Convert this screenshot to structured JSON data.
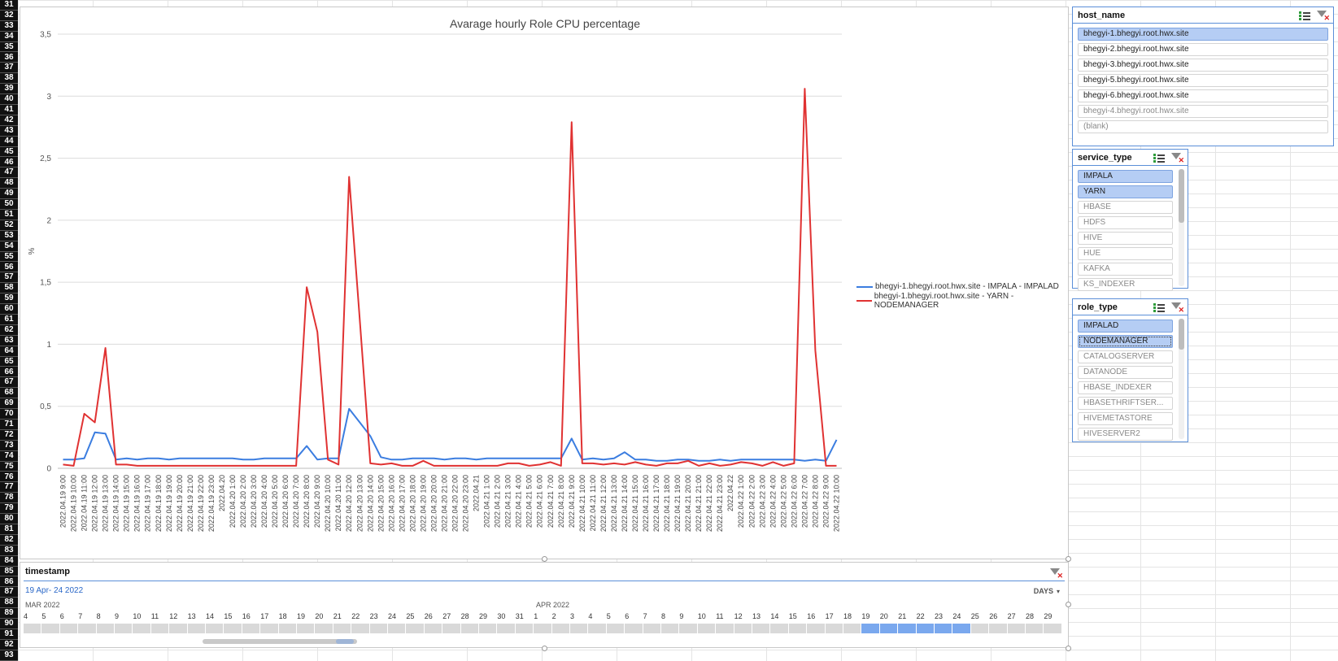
{
  "row_numbers": [
    "31",
    "32",
    "33",
    "34",
    "35",
    "36",
    "37",
    "38",
    "39",
    "40",
    "41",
    "42",
    "43",
    "44",
    "45",
    "46",
    "47",
    "48",
    "49",
    "50",
    "51",
    "52",
    "53",
    "54",
    "55",
    "56",
    "57",
    "58",
    "59",
    "60",
    "61",
    "62",
    "63",
    "64",
    "65",
    "66",
    "67",
    "68",
    "69",
    "70",
    "71",
    "72",
    "73",
    "74",
    "75",
    "76",
    "77",
    "78",
    "79",
    "80",
    "81",
    "82",
    "83",
    "84",
    "85",
    "86",
    "87",
    "88",
    "89",
    "90",
    "91",
    "92",
    "93"
  ],
  "chart_data": {
    "type": "line",
    "title": "Avarage hourly Role CPU percentage",
    "ylabel": "%",
    "xlabel": "",
    "ylim": [
      0,
      3.5
    ],
    "yticks": [
      "0",
      "0,5",
      "1",
      "1,5",
      "2",
      "2,5",
      "3",
      "3,5"
    ],
    "grid": true,
    "legend_position": "right",
    "x": [
      "2022.04.19 9:00",
      "2022.04.19 10:00",
      "2022.04.19 11:00",
      "2022.04.19 12:00",
      "2022.04.19 13:00",
      "2022.04.19 14:00",
      "2022.04.19 15:00",
      "2022.04.19 16:00",
      "2022.04.19 17:00",
      "2022.04.19 18:00",
      "2022.04.19 19:00",
      "2022.04.19 20:00",
      "2022.04.19 21:00",
      "2022.04.19 22:00",
      "2022.04.19 23:00",
      "2022.04.20",
      "2022.04.20 1:00",
      "2022.04.20 2:00",
      "2022.04.20 3:00",
      "2022.04.20 4:00",
      "2022.04.20 5:00",
      "2022.04.20 6:00",
      "2022.04.20 7:00",
      "2022.04.20 8:00",
      "2022.04.20 9:00",
      "2022.04.20 10:00",
      "2022.04.20 11:00",
      "2022.04.20 12:00",
      "2022.04.20 13:00",
      "2022.04.20 14:00",
      "2022.04.20 15:00",
      "2022.04.20 16:00",
      "2022.04.20 17:00",
      "2022.04.20 18:00",
      "2022.04.20 19:00",
      "2022.04.20 20:00",
      "2022.04.20 21:00",
      "2022.04.20 22:00",
      "2022.04.20 23:00",
      "2022.04.21",
      "2022.04.21 1:00",
      "2022.04.21 2:00",
      "2022.04.21 3:00",
      "2022.04.21 4:00",
      "2022.04.21 5:00",
      "2022.04.21 6:00",
      "2022.04.21 7:00",
      "2022.04.21 8:00",
      "2022.04.21 9:00",
      "2022.04.21 10:00",
      "2022.04.21 11:00",
      "2022.04.21 12:00",
      "2022.04.21 13:00",
      "2022.04.21 14:00",
      "2022.04.21 15:00",
      "2022.04.21 16:00",
      "2022.04.21 17:00",
      "2022.04.21 18:00",
      "2022.04.21 19:00",
      "2022.04.21 20:00",
      "2022.04.21 21:00",
      "2022.04.21 22:00",
      "2022.04.21 23:00",
      "2022.04.22",
      "2022.04.22 1:00",
      "2022.04.22 2:00",
      "2022.04.22 3:00",
      "2022.04.22 4:00",
      "2022.04.22 5:00",
      "2022.04.22 6:00",
      "2022.04.22 7:00",
      "2022.04.22 8:00",
      "2022.04.22 9:00",
      "2022.04.22 10:00"
    ],
    "series": [
      {
        "name": "bhegyi-1.bhegyi.root.hwx.site - IMPALA - IMPALAD",
        "color": "#3b7de0",
        "values": [
          0.07,
          0.07,
          0.08,
          0.29,
          0.28,
          0.07,
          0.08,
          0.07,
          0.08,
          0.08,
          0.07,
          0.08,
          0.08,
          0.08,
          0.08,
          0.08,
          0.08,
          0.07,
          0.07,
          0.08,
          0.08,
          0.08,
          0.08,
          0.18,
          0.07,
          0.08,
          0.08,
          0.48,
          0.37,
          0.26,
          0.09,
          0.07,
          0.07,
          0.08,
          0.08,
          0.08,
          0.07,
          0.08,
          0.08,
          0.07,
          0.08,
          0.08,
          0.08,
          0.08,
          0.08,
          0.08,
          0.08,
          0.08,
          0.24,
          0.07,
          0.08,
          0.07,
          0.08,
          0.13,
          0.07,
          0.07,
          0.06,
          0.06,
          0.07,
          0.07,
          0.06,
          0.06,
          0.07,
          0.06,
          0.07,
          0.07,
          0.07,
          0.07,
          0.07,
          0.07,
          0.06,
          0.07,
          0.06,
          0.23
        ]
      },
      {
        "name": "bhegyi-1.bhegyi.root.hwx.site - YARN - NODEMANAGER",
        "color": "#e03232",
        "values": [
          0.03,
          0.02,
          0.44,
          0.37,
          0.97,
          0.03,
          0.03,
          0.02,
          0.02,
          0.02,
          0.02,
          0.02,
          0.02,
          0.02,
          0.02,
          0.02,
          0.02,
          0.02,
          0.02,
          0.02,
          0.02,
          0.02,
          0.02,
          1.46,
          1.1,
          0.07,
          0.03,
          2.35,
          1.2,
          0.04,
          0.03,
          0.04,
          0.02,
          0.02,
          0.06,
          0.02,
          0.02,
          0.02,
          0.02,
          0.02,
          0.02,
          0.02,
          0.04,
          0.04,
          0.02,
          0.03,
          0.05,
          0.02,
          2.79,
          0.04,
          0.04,
          0.03,
          0.04,
          0.03,
          0.05,
          0.03,
          0.02,
          0.04,
          0.04,
          0.06,
          0.02,
          0.04,
          0.02,
          0.03,
          0.05,
          0.04,
          0.02,
          0.05,
          0.02,
          0.04,
          3.06,
          0.95,
          0.02,
          0.02
        ]
      }
    ]
  },
  "slicers": {
    "host_name": {
      "title": "host_name",
      "items": [
        {
          "label": "bhegyi-1.bhegyi.root.hwx.site",
          "state": "selected"
        },
        {
          "label": "bhegyi-2.bhegyi.root.hwx.site",
          "state": "normal"
        },
        {
          "label": "bhegyi-3.bhegyi.root.hwx.site",
          "state": "normal"
        },
        {
          "label": "bhegyi-5.bhegyi.root.hwx.site",
          "state": "normal"
        },
        {
          "label": "bhegyi-6.bhegyi.root.hwx.site",
          "state": "normal"
        },
        {
          "label": "bhegyi-4.bhegyi.root.hwx.site",
          "state": "dim"
        },
        {
          "label": "(blank)",
          "state": "dim"
        }
      ]
    },
    "service_type": {
      "title": "service_type",
      "items": [
        {
          "label": "IMPALA",
          "state": "selected"
        },
        {
          "label": "YARN",
          "state": "selected"
        },
        {
          "label": "HBASE",
          "state": "dim"
        },
        {
          "label": "HDFS",
          "state": "dim"
        },
        {
          "label": "HIVE",
          "state": "dim"
        },
        {
          "label": "HUE",
          "state": "dim"
        },
        {
          "label": "KAFKA",
          "state": "dim"
        },
        {
          "label": "KS_INDEXER",
          "state": "dim"
        }
      ]
    },
    "role_type": {
      "title": "role_type",
      "items": [
        {
          "label": "IMPALAD",
          "state": "selected"
        },
        {
          "label": "NODEMANAGER",
          "state": "selected-focus"
        },
        {
          "label": "CATALOGSERVER",
          "state": "dim"
        },
        {
          "label": "DATANODE",
          "state": "dim"
        },
        {
          "label": "HBASE_INDEXER",
          "state": "dim"
        },
        {
          "label": "HBASETHRIFTSER...",
          "state": "dim"
        },
        {
          "label": "HIVEMETASTORE",
          "state": "dim"
        },
        {
          "label": "HIVESERVER2",
          "state": "dim"
        }
      ]
    }
  },
  "timeline": {
    "title": "timestamp",
    "range_label": "19 Apr- 24 2022",
    "level_label": "DAYS",
    "level_arrow": "▾",
    "months": [
      "MAR 2022",
      "APR 2022"
    ],
    "days": [
      "4",
      "5",
      "6",
      "7",
      "8",
      "9",
      "10",
      "11",
      "12",
      "13",
      "14",
      "15",
      "16",
      "17",
      "18",
      "19",
      "20",
      "21",
      "22",
      "23",
      "24",
      "25",
      "26",
      "27",
      "28",
      "29",
      "30",
      "31",
      "1",
      "2",
      "3",
      "4",
      "5",
      "6",
      "7",
      "8",
      "9",
      "10",
      "11",
      "12",
      "13",
      "14",
      "15",
      "16",
      "17",
      "18",
      "19",
      "20",
      "21",
      "22",
      "23",
      "24",
      "25",
      "26",
      "27",
      "28",
      "29"
    ],
    "selected_days": [
      "19",
      "20",
      "21",
      "22",
      "23",
      "24"
    ]
  },
  "icons": {
    "multiselect": "multiselect-icon",
    "clear_filter": "clear-filter-icon"
  }
}
